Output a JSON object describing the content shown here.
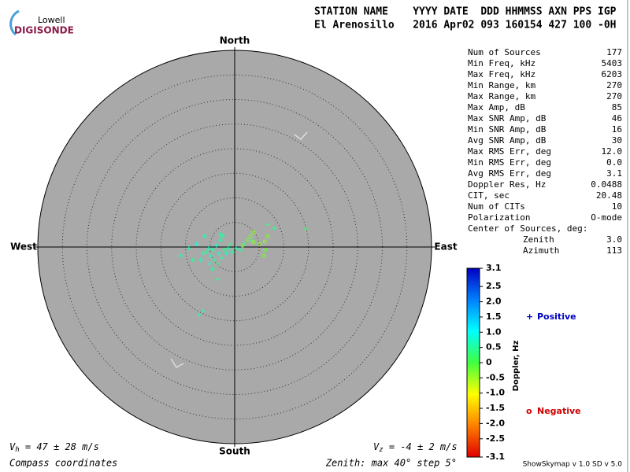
{
  "chart_data": {
    "type": "skymap",
    "logo": {
      "top": "Lowell",
      "bottom": "DIGISONDE"
    },
    "header": [
      "STATION NAME    YYYY DATE  DDD HHMMSS AXN PPS IGP",
      "El Arenosillo   2016 Apr02 093 160154 427 100 -0H"
    ],
    "directions": {
      "north": "North",
      "south": "South",
      "east": "East",
      "west": "West"
    },
    "rlim": [
      0,
      40
    ],
    "rstep": 5,
    "zenith_note": "Zenith: max 40°  step 5°",
    "coordinates_note": "Compass coordinates",
    "vh": {
      "symbol": "V",
      "sub": "h",
      "text": " = 47 ± 28 m/s"
    },
    "vz": {
      "symbol": "V",
      "sub": "z",
      "text": " = -4 ± 2 m/s"
    },
    "series": [
      {
        "name": "Positive",
        "marker": "+",
        "color": "#0000c0",
        "x": [
          -2.4,
          -2.9,
          -3.7,
          -4.5,
          -5.3,
          -5.8,
          -6.4,
          -4.8,
          -4.2,
          -3.2,
          -2.1,
          -1.3,
          -1.6,
          -2.6,
          -3.5,
          -5.1,
          -6.9,
          -8.5,
          -7.7,
          -6.1,
          -2.9,
          -1.0,
          -0.5,
          0.3,
          1.1,
          1.9,
          3.5,
          6.7,
          8.0,
          14.4,
          -6.4,
          -7.2,
          -3.5,
          -10.9,
          -9.3,
          -4.5
        ],
        "y": [
          2.2,
          1.4,
          0.3,
          -0.6,
          -0.2,
          -1.0,
          -1.3,
          -1.8,
          -2.6,
          -1.3,
          -0.6,
          -0.2,
          -1.3,
          -2.2,
          -3.4,
          -3.4,
          -2.6,
          -2.6,
          0.6,
          2.2,
          2.6,
          0.6,
          -1.0,
          -0.2,
          -0.6,
          0.6,
          1.4,
          4.6,
          3.8,
          3.7,
          -13.0,
          -13.8,
          -6.6,
          -1.8,
          -0.2,
          -4.5
        ],
        "doppler": [
          0.5,
          0.6,
          0.8,
          0.5,
          0.7,
          0.4,
          0.6,
          0.8,
          0.5,
          0.7,
          0.4,
          0.6,
          0.8,
          0.5,
          0.4,
          0.7,
          0.6,
          0.5,
          0.8,
          0.6,
          0.5,
          0.3,
          0.4,
          0.6,
          0.5,
          0.3,
          0.4,
          0.3,
          0.4,
          0.2,
          0.5,
          0.6,
          0.4,
          0.7,
          0.6,
          0.5
        ]
      },
      {
        "name": "Negative",
        "marker": "o",
        "color": "#d00000",
        "x": [
          2.7,
          3.8,
          5.9,
          6.2,
          5.1,
          3.8,
          3.2,
          1.6,
          6.7,
          6.1
        ],
        "y": [
          1.4,
          1.0,
          -1.8,
          -0.6,
          0.6,
          3.0,
          2.2,
          0.3,
          2.2,
          1.1
        ],
        "doppler": [
          -0.3,
          -0.4,
          -0.3,
          -0.2,
          -0.3,
          -0.4,
          -0.3,
          -0.2,
          -0.3,
          -0.4
        ]
      }
    ],
    "colorbar": {
      "label": "Doppler, Hz",
      "lim": [
        -3.1,
        3.1
      ],
      "colors": [
        "#e00000",
        "#ff8000",
        "#ffff00",
        "#40ff40",
        "#00ffff",
        "#0080ff",
        "#0000c0"
      ],
      "ticks": [
        3.1,
        2.5,
        {
          "value": 2,
          "label": "2.0"
        },
        1.5,
        {
          "value": 1,
          "label": "1.0"
        },
        0.5,
        0,
        -0.5,
        {
          "value": -1,
          "label": "-1.0"
        },
        -1.5,
        {
          "value": -2,
          "label": "-2.0"
        },
        -2.5,
        -3.1
      ]
    },
    "stats": [
      {
        "label": "Num of Sources",
        "value": "177"
      },
      {
        "label": "Min Freq, kHz",
        "value": "5403"
      },
      {
        "label": "Max Freq, kHz",
        "value": "6203"
      },
      {
        "label": "Min Range, km",
        "value": "270"
      },
      {
        "label": "Max Range, km",
        "value": "270"
      },
      {
        "label": "Max Amp, dB",
        "value": "85"
      },
      {
        "label": "Max SNR Amp, dB",
        "value": "46"
      },
      {
        "label": "Min SNR Amp, dB",
        "value": "16"
      },
      {
        "label": "Avg SNR Amp, dB",
        "value": "30"
      },
      {
        "label": "Max RMS Err, deg",
        "value": "12.0"
      },
      {
        "label": "Min RMS Err, deg",
        "value": "0.0"
      },
      {
        "label": "Avg RMS Err, deg",
        "value": "3.1"
      },
      {
        "label": "Doppler Res, Hz",
        "value": "0.0488"
      },
      {
        "label": "CIT, sec",
        "value": "20.48"
      },
      {
        "label": "Num of CITs",
        "value": "10"
      },
      {
        "label": "Polarization",
        "value": "O-mode"
      },
      {
        "label": "Center of Sources, deg:"
      },
      {
        "label": "Zenith",
        "value": "3.0",
        "indent": true
      },
      {
        "label": "Azimuth",
        "value": "113",
        "indent": true
      }
    ],
    "footer": "ShowSkymap v 1.0  SD v 5.0"
  }
}
